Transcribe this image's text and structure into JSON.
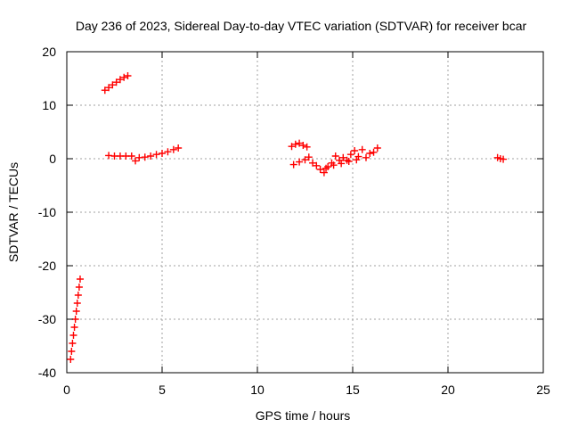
{
  "chart_data": {
    "type": "scatter",
    "title": "Day 236 of 2023, Sidereal Day-to-day VTEC variation (SDTVAR) for receiver bcar",
    "xlabel": "GPS time / hours",
    "ylabel": "SDTVAR / TECUs",
    "xlim": [
      0,
      25
    ],
    "ylim": [
      -40,
      20
    ],
    "x_ticks": [
      0,
      5,
      10,
      15,
      20,
      25
    ],
    "x_tick_labels": [
      "0",
      "5",
      "10",
      "15",
      "20",
      "25"
    ],
    "y_ticks": [
      -40,
      -30,
      -20,
      -10,
      0,
      10,
      20
    ],
    "y_tick_labels": [
      "-40",
      "-30",
      "-20",
      "-10",
      "0",
      "10",
      "20"
    ],
    "grid": true,
    "marker": "+",
    "color": "#ff0000",
    "series": [
      {
        "points": [
          [
            0.2,
            -37.5
          ],
          [
            0.25,
            -36.0
          ],
          [
            0.3,
            -34.5
          ],
          [
            0.35,
            -33.0
          ],
          [
            0.4,
            -31.5
          ],
          [
            0.45,
            -30.0
          ],
          [
            0.5,
            -28.5
          ],
          [
            0.55,
            -27.0
          ],
          [
            0.6,
            -25.5
          ],
          [
            0.65,
            -24.0
          ],
          [
            0.7,
            -22.5
          ],
          [
            2.0,
            12.8
          ],
          [
            2.2,
            13.3
          ],
          [
            2.4,
            13.8
          ],
          [
            2.6,
            14.3
          ],
          [
            2.8,
            14.8
          ],
          [
            3.0,
            15.2
          ],
          [
            3.2,
            15.5
          ],
          [
            2.2,
            0.6
          ],
          [
            2.5,
            0.5
          ],
          [
            2.8,
            0.5
          ],
          [
            3.1,
            0.5
          ],
          [
            3.4,
            0.5
          ],
          [
            3.6,
            -0.4
          ],
          [
            3.8,
            0.2
          ],
          [
            4.1,
            0.3
          ],
          [
            4.4,
            0.5
          ],
          [
            4.7,
            0.8
          ],
          [
            5.0,
            1.0
          ],
          [
            5.3,
            1.3
          ],
          [
            5.6,
            1.7
          ],
          [
            5.85,
            2.0
          ],
          [
            11.8,
            2.3
          ],
          [
            12.0,
            2.7
          ],
          [
            12.2,
            2.9
          ],
          [
            12.4,
            2.5
          ],
          [
            12.6,
            2.2
          ],
          [
            11.9,
            -1.1
          ],
          [
            12.2,
            -0.6
          ],
          [
            12.5,
            -0.2
          ],
          [
            12.7,
            0.3
          ],
          [
            12.9,
            -0.8
          ],
          [
            13.1,
            -1.3
          ],
          [
            13.3,
            -2.0
          ],
          [
            13.5,
            -2.6
          ],
          [
            13.7,
            -1.5
          ],
          [
            13.9,
            -0.8
          ],
          [
            14.1,
            0.5
          ],
          [
            14.3,
            -0.3
          ],
          [
            14.5,
            0.2
          ],
          [
            14.7,
            -0.3
          ],
          [
            14.9,
            0.8
          ],
          [
            15.1,
            1.5
          ],
          [
            15.3,
            0.4
          ],
          [
            15.5,
            1.7
          ],
          [
            15.7,
            0.2
          ],
          [
            15.9,
            1.0
          ],
          [
            16.1,
            1.2
          ],
          [
            16.3,
            2.0
          ],
          [
            13.6,
            -1.8
          ],
          [
            14.0,
            -1.2
          ],
          [
            14.4,
            -0.9
          ],
          [
            14.8,
            -0.5
          ],
          [
            15.2,
            -0.2
          ],
          [
            22.6,
            0.2
          ],
          [
            22.75,
            0.0
          ],
          [
            22.9,
            -0.1
          ]
        ]
      }
    ]
  }
}
